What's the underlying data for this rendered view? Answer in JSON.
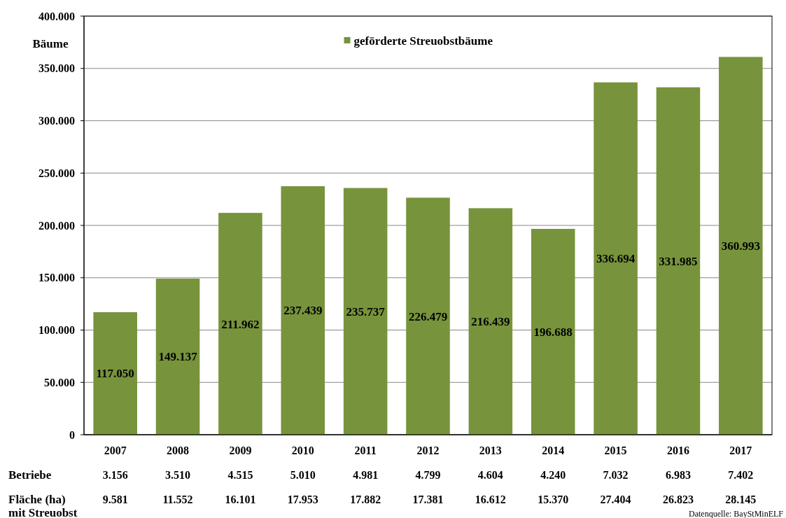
{
  "chart_data": {
    "type": "bar",
    "ylabel": "Bäume",
    "categories": [
      "2007",
      "2008",
      "2009",
      "2010",
      "2011",
      "2012",
      "2013",
      "2014",
      "2015",
      "2016",
      "2017"
    ],
    "series": [
      {
        "name": "geförderte Streuobstbäume",
        "color": "#77933c",
        "values": [
          117050,
          149137,
          211962,
          237439,
          235737,
          226479,
          216439,
          196688,
          336694,
          331985,
          360993
        ],
        "value_labels": [
          "117.050",
          "149.137",
          "211.962",
          "237.439",
          "235.737",
          "226.479",
          "216.439",
          "196.688",
          "336.694",
          "331.985",
          "360.993"
        ]
      }
    ],
    "ylim": [
      0,
      400000
    ],
    "yticks": [
      0,
      {
        "value": 50000,
        "label": "50.000"
      },
      {
        "value": 100000,
        "label": "100.000"
      },
      {
        "value": 150000,
        "label": "150.000"
      },
      {
        "value": 200000,
        "label": "200.000"
      },
      {
        "value": 250000,
        "label": "250.000"
      },
      {
        "value": 300000,
        "label": "300.000"
      },
      {
        "value": 350000,
        "label": "350.000"
      },
      {
        "value": 400000,
        "label": "400.000"
      }
    ],
    "grid": "y",
    "legend": "top",
    "annotations": [
      "Betriebe",
      "3.156",
      "3.510",
      "4.515",
      "5.010",
      "4.981",
      "4.799",
      "4.604",
      "4.240",
      "7.032",
      "6.983",
      "7.402",
      "Fläche (ha) mit Streuobst",
      "9.581",
      "11.552",
      "16.101",
      "17.953",
      "17.882",
      "17.381",
      "16.612",
      "15.370",
      "27.404",
      "26.823",
      "28.145",
      "Datenquelle: BayStMinELF"
    ]
  }
}
